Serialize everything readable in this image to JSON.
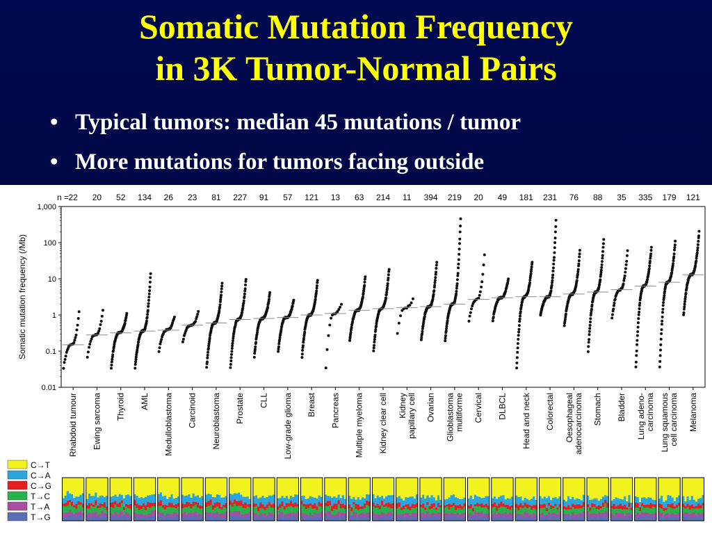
{
  "slide": {
    "title_lines": [
      "Somatic Mutation Frequency",
      "in 3K Tumor-Normal Pairs"
    ],
    "bullets": [
      "Typical tumors: median 45 mutations / tumor",
      "More mutations for tumors facing outside"
    ]
  },
  "chart_data": {
    "type": "scatter",
    "ylabel": "Somatic mutation frequency (/Mb)",
    "yscale": "log",
    "ylim": [
      0.01,
      1000
    ],
    "yticks": [
      {
        "v": 1000,
        "label": "1,000"
      },
      {
        "v": 100,
        "label": "100"
      },
      {
        "v": 10,
        "label": "10"
      },
      {
        "v": 1,
        "label": "1"
      },
      {
        "v": 0.1,
        "label": "0.1"
      },
      {
        "v": 0.01,
        "label": "0.01"
      }
    ],
    "n_prefix": "n =",
    "categories": [
      {
        "label": [
          "Rhabdoid tumour"
        ],
        "n": "22",
        "median": 0.15,
        "min": 0.035,
        "max": 1.2
      },
      {
        "label": [
          "Ewing sarcoma"
        ],
        "n": "20",
        "median": 0.28,
        "min": 0.07,
        "max": 1.3
      },
      {
        "label": [
          "Thyroid"
        ],
        "n": "52",
        "median": 0.32,
        "min": 0.035,
        "max": 1.1
      },
      {
        "label": [
          "AML"
        ],
        "n": "134",
        "median": 0.36,
        "min": 0.035,
        "max": 14
      },
      {
        "label": [
          "Medulloblastoma"
        ],
        "n": "26",
        "median": 0.38,
        "min": 0.1,
        "max": 0.9
      },
      {
        "label": [
          "Carcinoid"
        ],
        "n": "23",
        "median": 0.52,
        "min": 0.18,
        "max": 1.2
      },
      {
        "label": [
          "Neuroblastoma"
        ],
        "n": "81",
        "median": 0.6,
        "min": 0.035,
        "max": 7.5
      },
      {
        "label": [
          "Prostate"
        ],
        "n": "227",
        "median": 0.75,
        "min": 0.035,
        "max": 10
      },
      {
        "label": [
          "CLL"
        ],
        "n": "91",
        "median": 0.8,
        "min": 0.07,
        "max": 4
      },
      {
        "label": [
          "Low-grade glioma"
        ],
        "n": "57",
        "median": 0.85,
        "min": 0.1,
        "max": 2.6
      },
      {
        "label": [
          "Breast"
        ],
        "n": "121",
        "median": 1.0,
        "min": 0.07,
        "max": 9
      },
      {
        "label": [
          "Pancreas"
        ],
        "n": "13",
        "median": 1.1,
        "min": 0.035,
        "max": 2
      },
      {
        "label": [
          "Multiple myeloma"
        ],
        "n": "63",
        "median": 1.35,
        "min": 0.2,
        "max": 11
      },
      {
        "label": [
          "Kidney clear cell"
        ],
        "n": "214",
        "median": 1.5,
        "min": 0.1,
        "max": 19
      },
      {
        "label": [
          "Kidney",
          "papillary cell"
        ],
        "n": "11",
        "median": 1.6,
        "min": 0.3,
        "max": 2.8
      },
      {
        "label": [
          "Ovarian"
        ],
        "n": "394",
        "median": 1.7,
        "min": 0.2,
        "max": 30
      },
      {
        "label": [
          "Glioblastoma",
          "multiforme"
        ],
        "n": "219",
        "median": 2.0,
        "min": 0.2,
        "max": 450
      },
      {
        "label": [
          "Cervical"
        ],
        "n": "20",
        "median": 2.7,
        "min": 0.7,
        "max": 48
      },
      {
        "label": [
          "DLBCL"
        ],
        "n": "49",
        "median": 3.0,
        "min": 0.7,
        "max": 10
      },
      {
        "label": [
          "Head and neck"
        ],
        "n": "181",
        "median": 3.2,
        "min": 0.035,
        "max": 30
      },
      {
        "label": [
          "Colorectal"
        ],
        "n": "231",
        "median": 3.2,
        "min": 1.0,
        "max": 420
      },
      {
        "label": [
          "Oesophageal",
          "adenocarcinoma"
        ],
        "n": "76",
        "median": 3.8,
        "min": 0.5,
        "max": 60
      },
      {
        "label": [
          "Stomach"
        ],
        "n": "88",
        "median": 4.3,
        "min": 0.1,
        "max": 120
      },
      {
        "label": [
          "Bladder"
        ],
        "n": "35",
        "median": 5.0,
        "min": 0.8,
        "max": 60
      },
      {
        "label": [
          "Lung adeno-",
          "carcinoma"
        ],
        "n": "335",
        "median": 6.3,
        "min": 0.035,
        "max": 75
      },
      {
        "label": [
          "Lung squamous",
          "cell carcinoma"
        ],
        "n": "179",
        "median": 8.0,
        "min": 0.035,
        "max": 110
      },
      {
        "label": [
          "Melanoma"
        ],
        "n": "121",
        "median": 13.0,
        "min": 1.0,
        "max": 200
      }
    ],
    "spectrum_legend": [
      {
        "label": "C→T",
        "color": "#f2f21e"
      },
      {
        "label": "C→A",
        "color": "#2aa5dd"
      },
      {
        "label": "C→G",
        "color": "#e51e22"
      },
      {
        "label": "T→C",
        "color": "#28b24b"
      },
      {
        "label": "T→A",
        "color": "#a84d9f"
      },
      {
        "label": "T→G",
        "color": "#5a6fb4"
      }
    ]
  }
}
